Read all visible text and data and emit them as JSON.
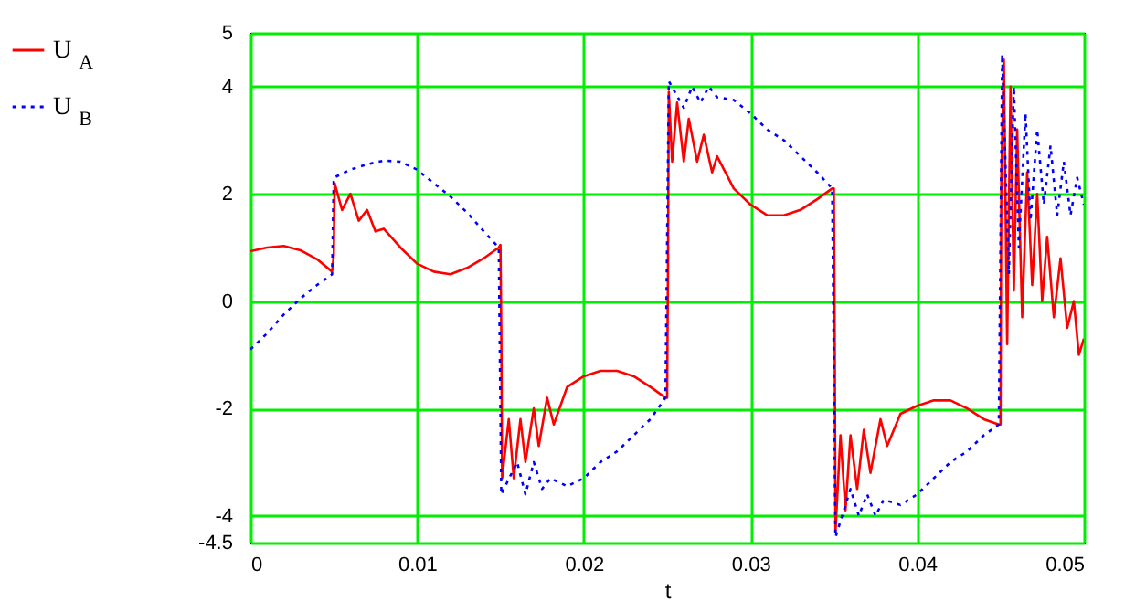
{
  "chart_data": {
    "type": "line",
    "xlabel": "t",
    "legend": "left",
    "grid": true,
    "xlim": [
      0,
      0.05
    ],
    "xticks": [
      0,
      0.01,
      0.02,
      0.03,
      0.04,
      0.05
    ],
    "ylim": [
      -4.5,
      5
    ],
    "yticks": [
      -4.5,
      -4,
      -2,
      0,
      2,
      4,
      5
    ],
    "series": [
      {
        "name": "U$_{A}$",
        "color": "#ff0000",
        "line_style": "solid",
        "x": [
          0,
          0.001,
          0.002,
          0.003,
          0.004,
          0.0049,
          0.005,
          0.00505,
          0.0055,
          0.006,
          0.0065,
          0.007,
          0.0075,
          0.008,
          0.009,
          0.01,
          0.011,
          0.012,
          0.013,
          0.014,
          0.0149,
          0.015,
          0.01505,
          0.0151,
          0.0155,
          0.0158,
          0.0162,
          0.0165,
          0.017,
          0.0173,
          0.0178,
          0.0182,
          0.019,
          0.02,
          0.021,
          0.022,
          0.023,
          0.024,
          0.0249,
          0.025,
          0.02505,
          0.0251,
          0.0253,
          0.0256,
          0.026,
          0.0263,
          0.0268,
          0.0272,
          0.0277,
          0.028,
          0.029,
          0.03,
          0.031,
          0.032,
          0.033,
          0.034,
          0.0349,
          0.035,
          0.03505,
          0.0351,
          0.0354,
          0.0357,
          0.036,
          0.0364,
          0.0368,
          0.0372,
          0.0378,
          0.0382,
          0.039,
          0.04,
          0.041,
          0.042,
          0.043,
          0.044,
          0.0449,
          0.045,
          0.04505,
          0.0452,
          0.0454,
          0.0456,
          0.0458,
          0.046,
          0.0463,
          0.0466,
          0.0469,
          0.0472,
          0.0475,
          0.0478,
          0.0482,
          0.0486,
          0.049,
          0.0494,
          0.0497,
          0.05
        ],
        "values": [
          0.93,
          1.0,
          1.03,
          0.95,
          0.78,
          0.55,
          0.85,
          2.2,
          1.7,
          2.0,
          1.5,
          1.7,
          1.3,
          1.35,
          1.0,
          0.7,
          0.55,
          0.5,
          0.62,
          0.8,
          1.0,
          1.05,
          -0.5,
          -3.3,
          -2.2,
          -3.3,
          -2.2,
          -3.0,
          -2.0,
          -2.7,
          -1.8,
          -2.3,
          -1.6,
          -1.4,
          -1.3,
          -1.3,
          -1.4,
          -1.6,
          -1.8,
          -1.8,
          0.5,
          3.9,
          2.6,
          3.7,
          2.6,
          3.4,
          2.6,
          3.1,
          2.4,
          2.7,
          2.1,
          1.8,
          1.6,
          1.6,
          1.7,
          1.9,
          2.1,
          2.1,
          -0.5,
          -4.3,
          -2.5,
          -3.9,
          -2.5,
          -3.5,
          -2.4,
          -3.2,
          -2.2,
          -2.7,
          -2.1,
          -1.95,
          -1.85,
          -1.85,
          -2.0,
          -2.2,
          -2.3,
          -2.3,
          2.3,
          4.5,
          -0.8,
          4.0,
          0.2,
          3.2,
          -0.3,
          2.4,
          0.3,
          2.0,
          0.0,
          1.2,
          -0.3,
          0.8,
          -0.5,
          0.0,
          -1.0,
          -0.7
        ]
      },
      {
        "name": "U$_{B}$",
        "color": "#0000ff",
        "line_style": "dotted",
        "x": [
          0,
          0.001,
          0.002,
          0.003,
          0.004,
          0.0049,
          0.005,
          0.006,
          0.007,
          0.008,
          0.009,
          0.01,
          0.011,
          0.012,
          0.013,
          0.014,
          0.0149,
          0.01505,
          0.016,
          0.0165,
          0.017,
          0.0175,
          0.018,
          0.019,
          0.02,
          0.021,
          0.022,
          0.023,
          0.024,
          0.0249,
          0.0251,
          0.026,
          0.0265,
          0.027,
          0.0275,
          0.028,
          0.029,
          0.03,
          0.031,
          0.032,
          0.033,
          0.034,
          0.0349,
          0.0351,
          0.036,
          0.0365,
          0.037,
          0.0375,
          0.038,
          0.039,
          0.04,
          0.041,
          0.042,
          0.043,
          0.044,
          0.0449,
          0.0451,
          0.0455,
          0.0458,
          0.0461,
          0.0465,
          0.0468,
          0.0472,
          0.0476,
          0.048,
          0.0484,
          0.0488,
          0.0492,
          0.0496,
          0.05
        ],
        "values": [
          -0.9,
          -0.6,
          -0.25,
          0.05,
          0.3,
          0.5,
          2.3,
          2.45,
          2.55,
          2.62,
          2.6,
          2.45,
          2.2,
          1.95,
          1.65,
          1.3,
          1.0,
          -3.6,
          -3.0,
          -3.6,
          -3.0,
          -3.5,
          -3.3,
          -3.45,
          -3.3,
          -3.0,
          -2.8,
          -2.5,
          -2.2,
          -1.8,
          4.1,
          3.6,
          4.0,
          3.7,
          4.0,
          3.8,
          3.75,
          3.5,
          3.2,
          3.0,
          2.7,
          2.4,
          2.1,
          -4.4,
          -3.5,
          -4.0,
          -3.6,
          -4.0,
          -3.7,
          -3.8,
          -3.6,
          -3.3,
          -3.0,
          -2.8,
          -2.5,
          -2.3,
          4.6,
          0.5,
          4.0,
          1.0,
          3.5,
          1.5,
          3.2,
          1.8,
          2.9,
          1.6,
          2.6,
          1.6,
          2.3,
          1.8
        ]
      }
    ]
  }
}
